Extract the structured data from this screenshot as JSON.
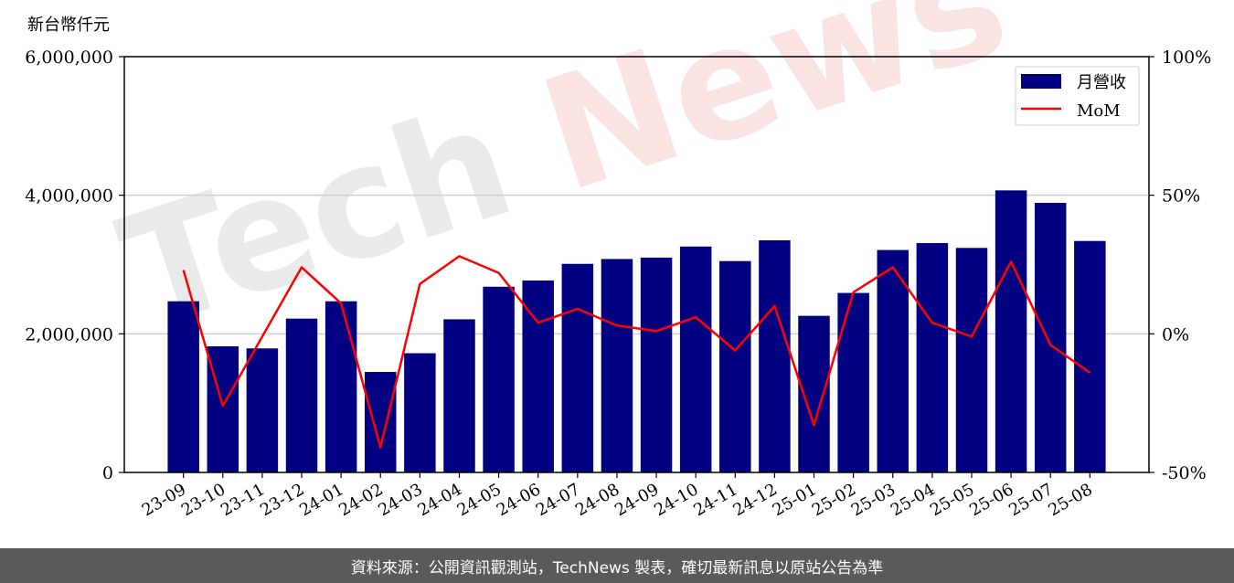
{
  "chart_data": {
    "type": "bar",
    "unit_label": "新台幣仟元",
    "categories": [
      "23-09",
      "23-10",
      "23-11",
      "23-12",
      "24-01",
      "24-02",
      "24-03",
      "24-04",
      "24-05",
      "24-06",
      "24-07",
      "24-08",
      "24-09",
      "24-10",
      "24-11",
      "24-12",
      "25-01",
      "25-02",
      "25-03",
      "25-04",
      "25-05",
      "25-06",
      "25-07",
      "25-08"
    ],
    "series": [
      {
        "name": "月營收",
        "type": "bar",
        "axis": "left",
        "color": "#000080",
        "values": [
          2470000,
          1820000,
          1790000,
          2220000,
          2470000,
          1450000,
          1720000,
          2210000,
          2680000,
          2770000,
          3010000,
          3080000,
          3100000,
          3260000,
          3050000,
          3350000,
          2260000,
          2590000,
          3210000,
          3310000,
          3240000,
          4070000,
          3890000,
          3340000
        ]
      },
      {
        "name": "MoM",
        "type": "line",
        "axis": "right",
        "color": "#ff0000",
        "values": [
          23,
          -26,
          -1,
          24,
          11,
          -41,
          18,
          28,
          22,
          4,
          9,
          3,
          1,
          6,
          -6,
          10,
          -33,
          15,
          24,
          4,
          -1,
          26,
          -4,
          -14
        ]
      }
    ],
    "y_left": {
      "min": 0,
      "max": 6000000,
      "ticks": [
        0,
        2000000,
        4000000,
        6000000
      ],
      "tick_labels": [
        "0",
        "2,000,000",
        "4,000,000",
        "6,000,000"
      ]
    },
    "y_right": {
      "min": -50,
      "max": 100,
      "ticks": [
        -50,
        0,
        50,
        100
      ],
      "tick_labels": [
        "-50%",
        "0%",
        "50%",
        "100%"
      ]
    },
    "grid": "horizontal",
    "legend_position": "top-right"
  },
  "watermark": {
    "text_tech": "Tech",
    "text_news": "News"
  },
  "footer": {
    "text": "資料來源：公開資訊觀測站，TechNews 製表，確切最新訊息以原站公告為準"
  }
}
